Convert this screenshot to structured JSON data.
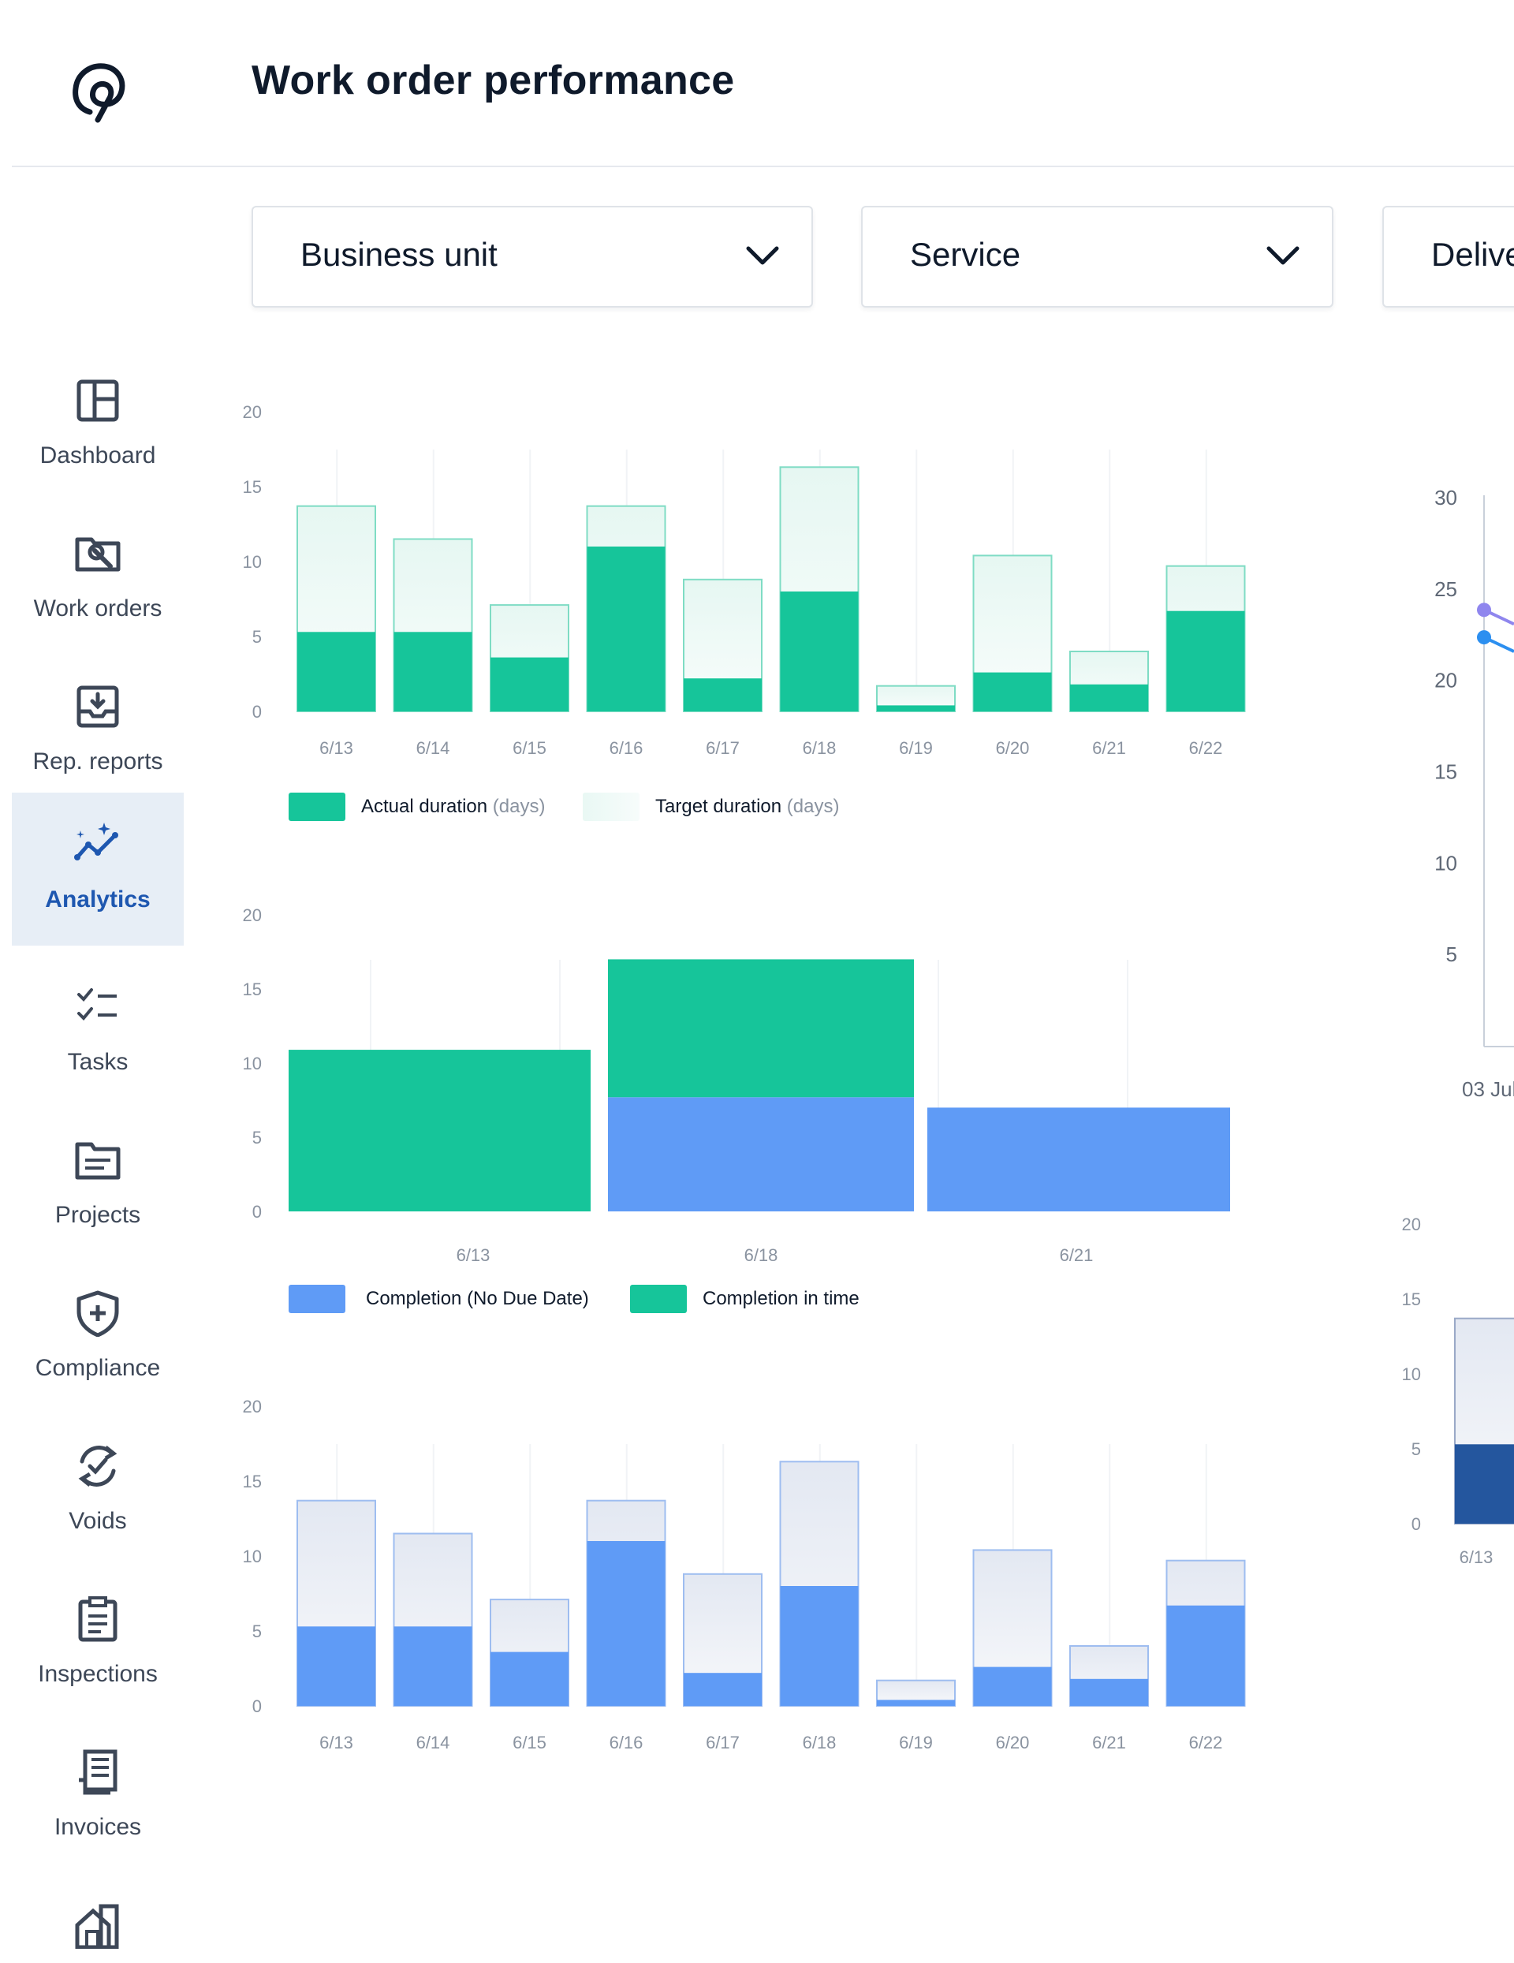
{
  "header": {
    "title": "Work order performance"
  },
  "sidebar": {
    "items": [
      {
        "label": "Dashboard",
        "icon": "dashboard-icon",
        "active": false
      },
      {
        "label": "Work orders",
        "icon": "work-orders-icon",
        "active": false
      },
      {
        "label": "Rep. reports",
        "icon": "rep-reports-icon",
        "active": false
      },
      {
        "label": "Analytics",
        "icon": "analytics-icon",
        "active": true
      },
      {
        "label": "Tasks",
        "icon": "tasks-icon",
        "active": false
      },
      {
        "label": "Projects",
        "icon": "projects-icon",
        "active": false
      },
      {
        "label": "Compliance",
        "icon": "compliance-icon",
        "active": false
      },
      {
        "label": "Voids",
        "icon": "voids-icon",
        "active": false
      },
      {
        "label": "Inspections",
        "icon": "inspections-icon",
        "active": false
      },
      {
        "label": "Invoices",
        "icon": "invoices-icon",
        "active": false
      },
      {
        "label": "",
        "icon": "properties-icon",
        "active": false
      }
    ]
  },
  "filters": [
    {
      "label": "Business unit"
    },
    {
      "label": "Service"
    },
    {
      "label": "Delive"
    }
  ],
  "colors": {
    "green": "#16c59a",
    "blue": "#5f9bf6",
    "dark_blue": "#24569e",
    "purple": "#8f86ee",
    "accent": "#1e57b0"
  },
  "legends": {
    "duration": {
      "actual_label": "Actual duration",
      "actual_unit": "(days)",
      "target_label": "Target duration",
      "target_unit": "(days)"
    },
    "completion": {
      "no_due_label": "Completion (No Due Date)",
      "in_time_label": "Completion in time"
    }
  },
  "chart_data": [
    {
      "id": "duration_green",
      "type": "bar",
      "categories": [
        "6/13",
        "6/14",
        "6/15",
        "6/16",
        "6/17",
        "6/18",
        "6/19",
        "6/20",
        "6/21",
        "6/22"
      ],
      "series": [
        {
          "name": "Actual duration (days)",
          "values": [
            5.3,
            5.3,
            3.6,
            11,
            2.2,
            8,
            0.4,
            2.6,
            1.8,
            6.7
          ]
        },
        {
          "name": "Target duration (days)",
          "values": [
            13.7,
            11.5,
            7.1,
            13.7,
            8.8,
            16.3,
            1.7,
            10.4,
            4,
            9.7
          ]
        }
      ],
      "ylim": [
        0,
        20
      ],
      "yticks": [
        0,
        5,
        10,
        15,
        20
      ]
    },
    {
      "id": "completion",
      "type": "bar",
      "stacked": true,
      "categories": [
        "6/13",
        "6/18",
        "6/21"
      ],
      "series": [
        {
          "name": "Completion (No Due Date)",
          "values": [
            0,
            7.7,
            7
          ]
        },
        {
          "name": "Completion in time",
          "values": [
            10.9,
            9.3,
            0
          ]
        }
      ],
      "ylim": [
        0,
        20
      ],
      "yticks": [
        0,
        5,
        10,
        15,
        20
      ]
    },
    {
      "id": "duration_blue",
      "type": "bar",
      "categories": [
        "6/13",
        "6/14",
        "6/15",
        "6/16",
        "6/17",
        "6/18",
        "6/19",
        "6/20",
        "6/21",
        "6/22"
      ],
      "series": [
        {
          "name": "Actual",
          "values": [
            5.3,
            5.3,
            3.6,
            11,
            2.2,
            8,
            0.4,
            2.6,
            1.8,
            6.7
          ]
        },
        {
          "name": "Target",
          "values": [
            13.7,
            11.5,
            7.1,
            13.7,
            8.8,
            16.3,
            1.7,
            10.4,
            4,
            9.7
          ]
        }
      ],
      "ylim": [
        0,
        20
      ],
      "yticks": [
        0,
        5,
        10,
        15,
        20
      ]
    },
    {
      "id": "line_right",
      "type": "line",
      "x": [
        "03 Jul"
      ],
      "series": [
        {
          "values": [
            23.9
          ]
        },
        {
          "values": [
            22.4
          ]
        }
      ],
      "ylim": [
        0,
        30
      ],
      "yticks": [
        5,
        10,
        15,
        20,
        25,
        30
      ],
      "xtick_label": "03 Jul"
    },
    {
      "id": "bar_right",
      "type": "bar",
      "categories": [
        "6/13"
      ],
      "series": [
        {
          "name": "Actual",
          "values": [
            5.3
          ]
        },
        {
          "name": "Target",
          "values": [
            13.7
          ]
        }
      ],
      "ylim": [
        0,
        20
      ],
      "yticks": [
        0,
        5,
        10,
        15,
        20
      ]
    }
  ]
}
